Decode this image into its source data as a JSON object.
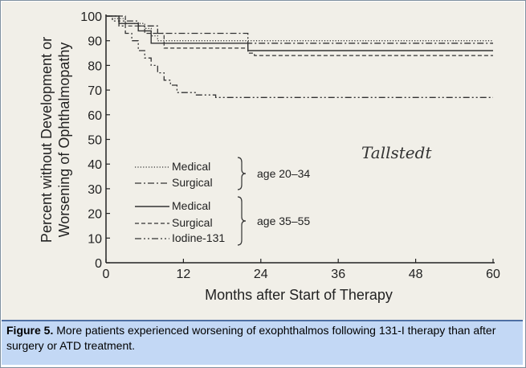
{
  "caption": {
    "label": "Figure 5.",
    "text": " More patients experienced worsening of exophthalmos following 131-I therapy than after surgery or ATD treatment."
  },
  "chart_data": {
    "type": "line",
    "xlabel": "Months after Start of Therapy",
    "ylabel_lines": [
      "Percent without Development or",
      "Worsening of Ophthalmopathy"
    ],
    "xlim": [
      0,
      60
    ],
    "ylim": [
      0,
      100
    ],
    "xticks": [
      0,
      12,
      24,
      36,
      48,
      60
    ],
    "yticks": [
      0,
      10,
      20,
      30,
      40,
      50,
      60,
      70,
      80,
      90,
      100
    ],
    "annotation": "Tallstedt",
    "legend_groups": [
      {
        "label": "age 20–34",
        "entries": [
          "Medical",
          "Surgical"
        ]
      },
      {
        "label": "age 35–55",
        "entries": [
          "Medical",
          "Surgical",
          "Iodine-131"
        ]
      }
    ],
    "series": [
      {
        "name": "Medical",
        "group": "age 20–34",
        "style": "dotted",
        "points": [
          [
            0,
            100
          ],
          [
            1,
            100
          ],
          [
            1,
            99
          ],
          [
            3,
            99
          ],
          [
            3,
            97
          ],
          [
            6,
            97
          ],
          [
            6,
            95
          ],
          [
            7,
            95
          ],
          [
            7,
            92
          ],
          [
            8,
            92
          ],
          [
            8,
            90
          ],
          [
            60,
            90
          ]
        ]
      },
      {
        "name": "Surgical",
        "group": "age 20–34",
        "style": "dashdot",
        "points": [
          [
            0,
            100
          ],
          [
            2,
            100
          ],
          [
            2,
            98
          ],
          [
            5,
            98
          ],
          [
            5,
            96
          ],
          [
            8,
            96
          ],
          [
            8,
            93
          ],
          [
            22,
            93
          ],
          [
            22,
            89
          ],
          [
            60,
            89
          ]
        ]
      },
      {
        "name": "Medical",
        "group": "age 35–55",
        "style": "solid",
        "points": [
          [
            0,
            100
          ],
          [
            2,
            100
          ],
          [
            2,
            97
          ],
          [
            5,
            97
          ],
          [
            5,
            94
          ],
          [
            7,
            94
          ],
          [
            7,
            89
          ],
          [
            22,
            89
          ],
          [
            22,
            86
          ],
          [
            60,
            86
          ]
        ]
      },
      {
        "name": "Surgical",
        "group": "age 35–55",
        "style": "dashed",
        "points": [
          [
            0,
            100
          ],
          [
            3,
            100
          ],
          [
            3,
            96
          ],
          [
            6,
            96
          ],
          [
            6,
            93
          ],
          [
            9,
            93
          ],
          [
            9,
            87
          ],
          [
            22,
            87
          ],
          [
            22,
            85
          ],
          [
            23,
            85
          ],
          [
            23,
            84
          ],
          [
            60,
            84
          ]
        ]
      },
      {
        "name": "Iodine-131",
        "group": "age 35–55",
        "style": "dashdotdot",
        "points": [
          [
            0,
            100
          ],
          [
            1,
            100
          ],
          [
            1,
            98
          ],
          [
            2,
            98
          ],
          [
            2,
            96
          ],
          [
            3,
            96
          ],
          [
            3,
            93
          ],
          [
            4,
            93
          ],
          [
            4,
            90
          ],
          [
            5,
            90
          ],
          [
            5,
            86
          ],
          [
            6,
            86
          ],
          [
            6,
            83
          ],
          [
            7,
            83
          ],
          [
            7,
            80
          ],
          [
            8,
            80
          ],
          [
            8,
            77
          ],
          [
            9,
            77
          ],
          [
            9,
            74
          ],
          [
            10,
            74
          ],
          [
            10,
            72
          ],
          [
            11,
            72
          ],
          [
            11,
            69
          ],
          [
            14,
            69
          ],
          [
            14,
            68
          ],
          [
            17,
            68
          ],
          [
            17,
            67
          ],
          [
            60,
            67
          ]
        ]
      }
    ]
  }
}
